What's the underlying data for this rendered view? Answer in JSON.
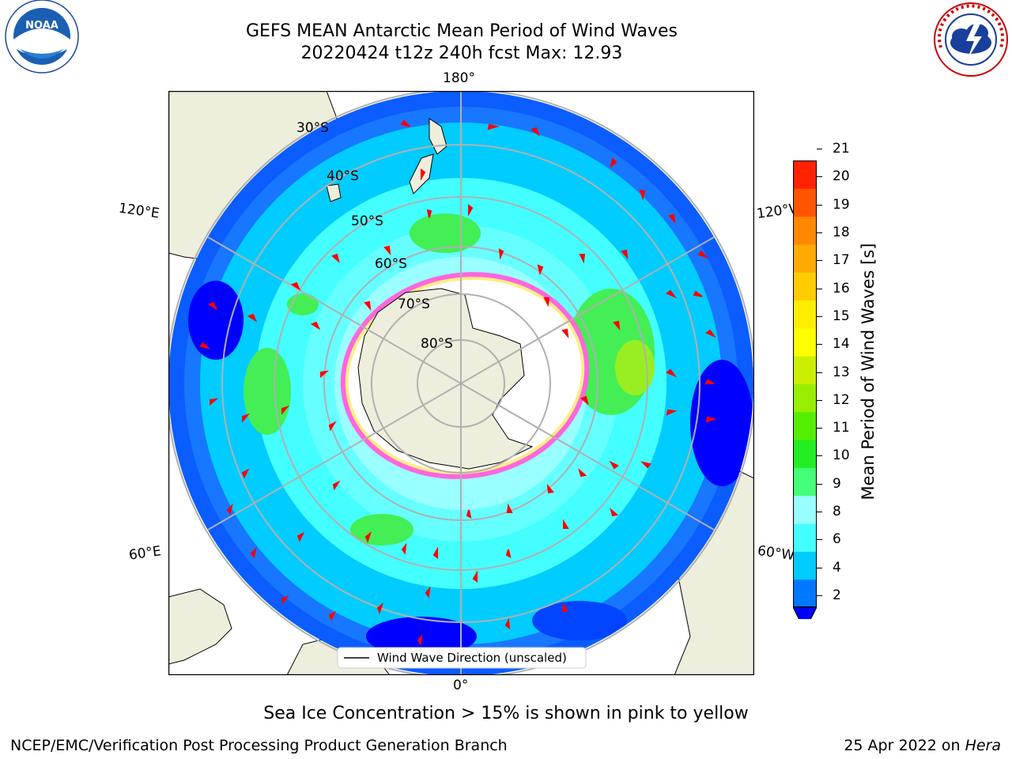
{
  "header": {
    "title_line1": "GEFS MEAN Antarctic Mean Period of Wind Waves",
    "title_line2": "20220424 t12z 240h fcst   Max: 12.93"
  },
  "logos": {
    "left_icon": "noaa-logo",
    "left_text": "NOAA",
    "right_icon": "nws-logo",
    "right_text": "NATIONAL WEATHER SERVICE"
  },
  "map": {
    "lon_labels": {
      "top": "180°",
      "bottom": "0°",
      "upper_left": "120°E",
      "upper_right": "120°W",
      "lower_left": "60°E",
      "lower_right": "60°W"
    },
    "lat_labels": [
      "30°S",
      "40°S",
      "50°S",
      "60°S",
      "70°S",
      "80°S"
    ],
    "legend_text": "Wind Wave Direction (unscaled)",
    "colors": {
      "land": "#eeeedd",
      "ice": "#ffffff",
      "ice_edge": "#ff33cc",
      "arrow": "#ff0000",
      "graticule": "#b0b0b0"
    }
  },
  "colorbar": {
    "label": "Mean Period of Wind Waves [s]",
    "ticks": [
      "2",
      "4",
      "6",
      "8",
      "9",
      "10",
      "11",
      "12",
      "13",
      "14",
      "15",
      "16",
      "17",
      "18",
      "19",
      "20",
      "21"
    ],
    "colors": [
      "#0000ff",
      "#0077ff",
      "#00ccff",
      "#44ffff",
      "#99ffff",
      "#44ff77",
      "#22ee22",
      "#55ee00",
      "#99ee00",
      "#ccee00",
      "#ffff00",
      "#ffee00",
      "#ffcc00",
      "#ffaa00",
      "#ff8800",
      "#ff5500",
      "#ff2200",
      "#ff0000"
    ]
  },
  "footer": {
    "caption": "Sea Ice Concentration > 15% is shown in pink to yellow",
    "left": "NCEP/EMC/Verification Post Processing Product Generation Branch",
    "right_date": "25 Apr 2022 on ",
    "right_machine": "Hera"
  }
}
